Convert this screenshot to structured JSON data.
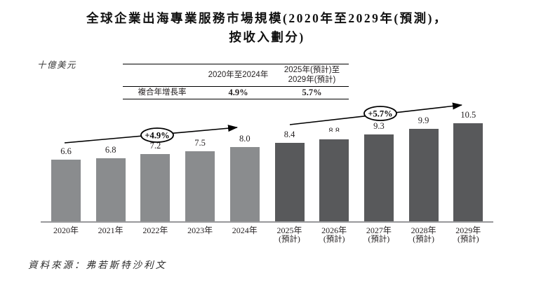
{
  "title": {
    "line1": "全球企業出海專業服務市場規模(2020年至2029年(預測)，",
    "line2": "按收入劃分)"
  },
  "axis_unit_label": "十億美元",
  "cagr_table": {
    "row_label": "複合年增長率",
    "period_1_header": "2020年至2024年",
    "period_2_header": "2025年(預計)至\n2029年(預計)",
    "period_1_cagr": "4.9%",
    "period_2_cagr": "5.7%"
  },
  "annotations": {
    "historical_cagr_label": "+4.9%",
    "forecast_cagr_label": "+5.7%"
  },
  "source_note": "資料來源：弗若斯特沙利文",
  "colors": {
    "historical_bar": "#8A8C8E",
    "forecast_bar": "#58595B",
    "axis_line": "#98989B",
    "text": "#231F20"
  },
  "chart_data": {
    "type": "bar",
    "title": "全球企業出海專業服務市場規模(2020年至2029年(預測)，按收入劃分)",
    "ylabel": "十億美元",
    "xlabel": "",
    "ylim": [
      0,
      11
    ],
    "grid": false,
    "legend": false,
    "categories": [
      "2020年",
      "2021年",
      "2022年",
      "2023年",
      "2024年",
      "2025年(預計)",
      "2026年(預計)",
      "2027年(預計)",
      "2028年(預計)",
      "2029年(預計)"
    ],
    "values": [
      6.6,
      6.8,
      7.2,
      7.5,
      8.0,
      8.4,
      8.8,
      9.3,
      9.9,
      10.5
    ],
    "bars": [
      {
        "year": "2020年",
        "sub": "",
        "label": "6.6",
        "value": 6.6,
        "segment": "historical"
      },
      {
        "year": "2021年",
        "sub": "",
        "label": "6.8",
        "value": 6.8,
        "segment": "historical"
      },
      {
        "year": "2022年",
        "sub": "",
        "label": "7.2",
        "value": 7.2,
        "segment": "historical"
      },
      {
        "year": "2023年",
        "sub": "",
        "label": "7.5",
        "value": 7.5,
        "segment": "historical"
      },
      {
        "year": "2024年",
        "sub": "",
        "label": "8.0",
        "value": 8.0,
        "segment": "historical"
      },
      {
        "year": "2025年",
        "sub": "(預計)",
        "label": "8.4",
        "value": 8.4,
        "segment": "forecast"
      },
      {
        "year": "2026年",
        "sub": "(預計)",
        "label": "8.8",
        "value": 8.8,
        "segment": "forecast"
      },
      {
        "year": "2027年",
        "sub": "(預計)",
        "label": "9.3",
        "value": 9.3,
        "segment": "forecast"
      },
      {
        "year": "2028年",
        "sub": "(預計)",
        "label": "9.9",
        "value": 9.9,
        "segment": "forecast"
      },
      {
        "year": "2029年",
        "sub": "(預計)",
        "label": "10.5",
        "value": 10.5,
        "segment": "forecast"
      }
    ],
    "partially_hidden_label_index": 6,
    "trend_annotations": [
      {
        "text": "+4.9%",
        "segment": "historical"
      },
      {
        "text": "+5.7%",
        "segment": "forecast"
      }
    ]
  }
}
